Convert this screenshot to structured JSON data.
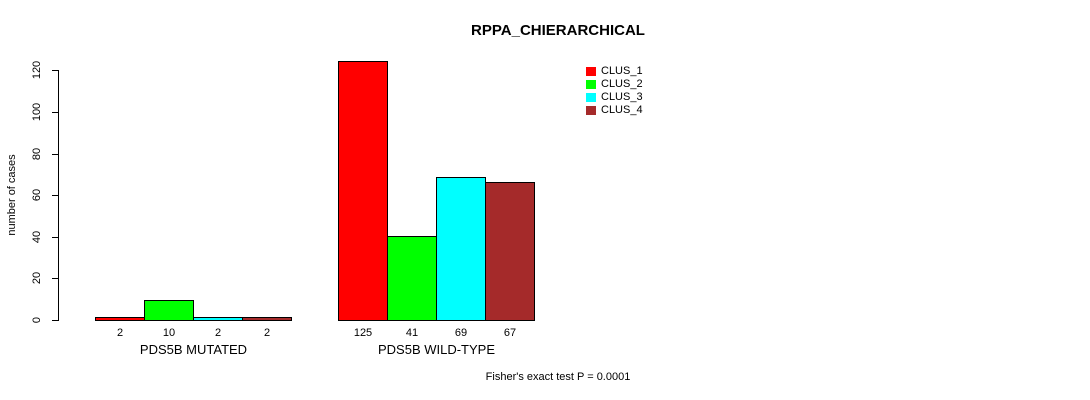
{
  "chart_data": {
    "type": "bar",
    "title": "RPPA_CHIERARCHICAL",
    "ylabel": "number of cases",
    "xlabel": "",
    "ylim": [
      0,
      120
    ],
    "y_ticks": [
      0,
      20,
      40,
      60,
      80,
      100,
      120
    ],
    "grid": false,
    "legend_position": "top-right",
    "categories": [
      "PDS5B MUTATED",
      "PDS5B WILD-TYPE"
    ],
    "series": [
      {
        "name": "CLUS_1",
        "color": "#FF0000",
        "values": [
          2,
          125
        ]
      },
      {
        "name": "CLUS_2",
        "color": "#00FF00",
        "values": [
          10,
          41
        ]
      },
      {
        "name": "CLUS_3",
        "color": "#00FFFF",
        "values": [
          2,
          69
        ]
      },
      {
        "name": "CLUS_4",
        "color": "#A52A2A",
        "values": [
          2,
          67
        ]
      }
    ],
    "annotation": "Fisher's exact test P = 0.0001"
  }
}
